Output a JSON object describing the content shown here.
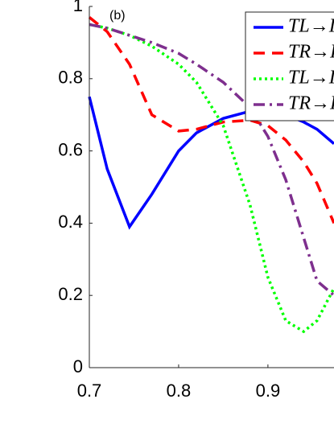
{
  "chart_data": {
    "type": "line",
    "annotation": "(b)",
    "x": [
      0.7,
      0.72,
      0.745,
      0.77,
      0.8,
      0.82,
      0.85,
      0.88,
      0.9,
      0.92,
      0.94,
      0.955,
      0.974
    ],
    "series": [
      {
        "name": "TL→I",
        "color": "#0000ff",
        "dash": "solid",
        "values": [
          0.75,
          0.55,
          0.39,
          0.48,
          0.6,
          0.65,
          0.69,
          0.71,
          0.71,
          0.7,
          0.68,
          0.66,
          0.62
        ]
      },
      {
        "name": "TR→I",
        "color": "#ff0000",
        "dash": "dashed",
        "values": [
          0.97,
          0.93,
          0.84,
          0.7,
          0.655,
          0.66,
          0.68,
          0.685,
          0.67,
          0.63,
          0.57,
          0.51,
          0.4
        ]
      },
      {
        "name": "TL→I",
        "color": "#00ff00",
        "dash": "dotted",
        "values": [
          0.95,
          0.94,
          0.92,
          0.89,
          0.84,
          0.79,
          0.67,
          0.45,
          0.25,
          0.13,
          0.1,
          0.13,
          0.22
        ]
      },
      {
        "name": "TR→I",
        "color": "#7e2f8e",
        "dash": "dashdot",
        "values": [
          0.95,
          0.94,
          0.92,
          0.9,
          0.87,
          0.84,
          0.79,
          0.72,
          0.64,
          0.52,
          0.36,
          0.24,
          0.2
        ]
      }
    ],
    "xlim": [
      0.7,
      0.974
    ],
    "xticks": [
      0.7,
      0.8,
      0.9
    ],
    "ylim": [
      0,
      1
    ],
    "yticks": [
      0,
      0.2,
      0.4,
      0.6,
      0.8,
      1
    ]
  }
}
